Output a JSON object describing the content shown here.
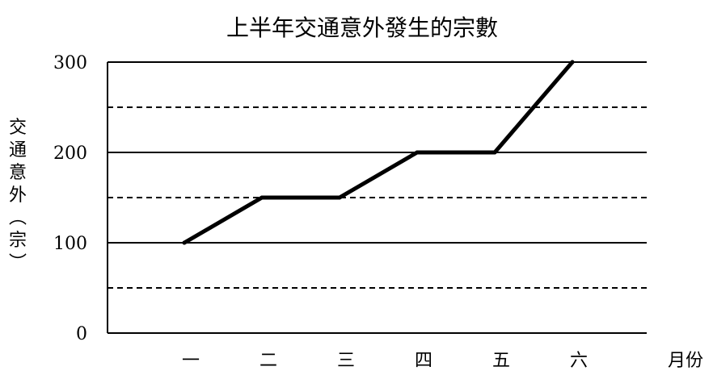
{
  "chart_data": {
    "type": "line",
    "title": "上半年交通意外發生的宗數",
    "xlabel": "月份",
    "ylabel": "交通意外（宗）",
    "categories": [
      "一",
      "二",
      "三",
      "四",
      "五",
      "六"
    ],
    "series": [
      {
        "values": [
          100,
          150,
          150,
          200,
          200,
          300
        ]
      }
    ],
    "ylim": [
      0,
      300
    ],
    "yticks": [
      0,
      100,
      200,
      300
    ],
    "grid": true,
    "legend": "none",
    "line_color": "#000000"
  }
}
